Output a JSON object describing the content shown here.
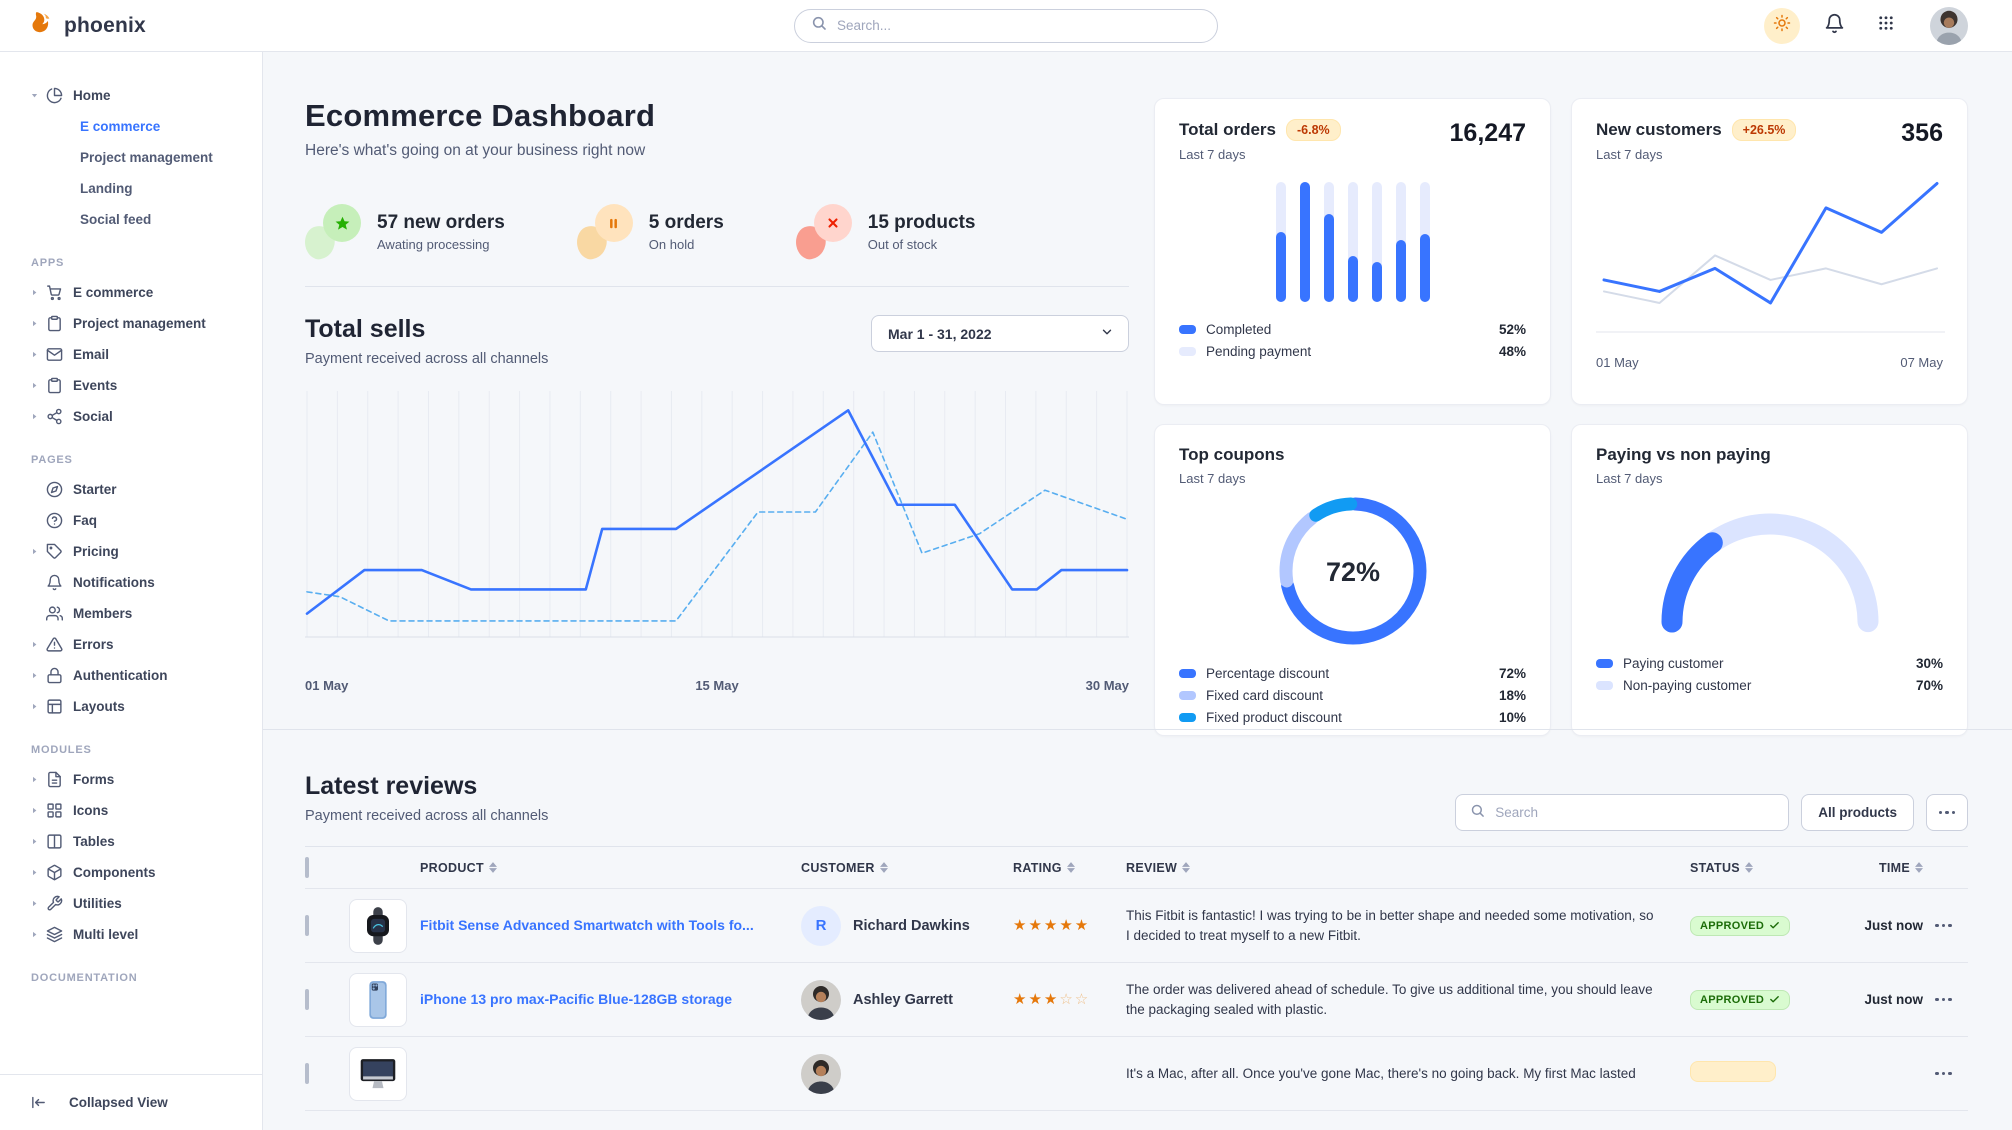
{
  "header": {
    "brand": "phoenix",
    "search_placeholder": "Search..."
  },
  "sidebar": {
    "home": {
      "label": "Home",
      "icon": "pie",
      "children": [
        {
          "label": "E commerce",
          "active": true
        },
        {
          "label": "Project management",
          "active": false
        },
        {
          "label": "Landing",
          "active": false
        },
        {
          "label": "Social feed",
          "active": false
        }
      ]
    },
    "sections": [
      {
        "label": "APPS",
        "items": [
          {
            "label": "E commerce",
            "icon": "cart",
            "caret": true
          },
          {
            "label": "Project management",
            "icon": "clipboard",
            "caret": true
          },
          {
            "label": "Email",
            "icon": "mail",
            "caret": true
          },
          {
            "label": "Events",
            "icon": "clipboard",
            "caret": true
          },
          {
            "label": "Social",
            "icon": "share",
            "caret": true
          }
        ]
      },
      {
        "label": "PAGES",
        "items": [
          {
            "label": "Starter",
            "icon": "compass",
            "caret": false
          },
          {
            "label": "Faq",
            "icon": "help",
            "caret": false
          },
          {
            "label": "Pricing",
            "icon": "tag",
            "caret": true
          },
          {
            "label": "Notifications",
            "icon": "bell",
            "caret": false
          },
          {
            "label": "Members",
            "icon": "users",
            "caret": false
          },
          {
            "label": "Errors",
            "icon": "alert",
            "caret": true
          },
          {
            "label": "Authentication",
            "icon": "lock",
            "caret": true
          },
          {
            "label": "Layouts",
            "icon": "layout",
            "caret": true
          }
        ]
      },
      {
        "label": "MODULES",
        "items": [
          {
            "label": "Forms",
            "icon": "file",
            "caret": true
          },
          {
            "label": "Icons",
            "icon": "grid",
            "caret": true
          },
          {
            "label": "Tables",
            "icon": "columns",
            "caret": true
          },
          {
            "label": "Components",
            "icon": "package",
            "caret": true
          },
          {
            "label": "Utilities",
            "icon": "tool",
            "caret": true
          },
          {
            "label": "Multi level",
            "icon": "layers",
            "caret": true
          }
        ]
      },
      {
        "label": "DOCUMENTATION",
        "items": []
      }
    ],
    "collapse_label": "Collapsed View"
  },
  "page": {
    "title": "Ecommerce Dashboard",
    "subtitle": "Here's what's going on at your business right now"
  },
  "stats": [
    {
      "value": "57 new orders",
      "label": "Awating processing",
      "icon": "star",
      "circle": "#c6efba",
      "glyph": "#25b003",
      "blob": "#d7f2cf"
    },
    {
      "value": "5 orders",
      "label": "On hold",
      "icon": "pause",
      "circle": "#ffe3bd",
      "glyph": "#e5780b",
      "blob": "#f9d8a3"
    },
    {
      "value": "15 products",
      "label": "Out of stock",
      "icon": "x",
      "circle": "#ffd5cd",
      "glyph": "#ed2000",
      "blob": "#f99e90"
    }
  ],
  "total_sells": {
    "title": "Total sells",
    "subtitle": "Payment received across all channels",
    "date_range": "Mar 1 - 31, 2022"
  },
  "cards": {
    "total_orders": {
      "title": "Total orders",
      "badge": "-6.8%",
      "value": "16,247",
      "period": "Last 7 days",
      "legend": [
        {
          "label": "Completed",
          "value": "52%",
          "color": "#3874ff"
        },
        {
          "label": "Pending payment",
          "value": "48%",
          "color": "#e6ebfd"
        }
      ]
    },
    "new_customers": {
      "title": "New customers",
      "badge": "+26.5%",
      "value": "356",
      "period": "Last 7 days"
    },
    "top_coupons": {
      "title": "Top coupons",
      "period": "Last 7 days",
      "legend": [
        {
          "label": "Percentage discount",
          "value": "72%",
          "color": "#3874ff"
        },
        {
          "label": "Fixed card discount",
          "value": "18%",
          "color": "#b2c7ff"
        },
        {
          "label": "Fixed product discount",
          "value": "10%",
          "color": "#119bf3"
        }
      ]
    },
    "paying": {
      "title": "Paying vs non paying",
      "period": "Last 7 days",
      "legend": [
        {
          "label": "Paying customer",
          "value": "30%",
          "color": "#3874ff"
        },
        {
          "label": "Non-paying customer",
          "value": "70%",
          "color": "#dbe4ff"
        }
      ]
    }
  },
  "chart_data": [
    {
      "id": "total_sells",
      "type": "line",
      "title": "Total sells",
      "x_labels": [
        "01 May",
        "15 May",
        "30 May"
      ],
      "ylim": [
        0,
        100
      ],
      "grid": true,
      "gridlines": 28,
      "series": [
        {
          "name": "current",
          "style": "solid",
          "color": "#3874ff",
          "points": [
            [
              0,
              8
            ],
            [
              7,
              26
            ],
            [
              14,
              26
            ],
            [
              20,
              18
            ],
            [
              34,
              18
            ],
            [
              36,
              43
            ],
            [
              45,
              43
            ],
            [
              66,
              92
            ],
            [
              72,
              53
            ],
            [
              79,
              53
            ],
            [
              86,
              18
            ],
            [
              89,
              18
            ],
            [
              92,
              26
            ],
            [
              100,
              26
            ]
          ]
        },
        {
          "name": "previous",
          "style": "dashed",
          "color": "#58aef0",
          "points": [
            [
              0,
              17
            ],
            [
              4,
              15
            ],
            [
              10,
              5
            ],
            [
              45,
              5
            ],
            [
              55,
              50
            ],
            [
              62,
              50
            ],
            [
              69,
              83
            ],
            [
              75,
              33
            ],
            [
              82,
              41
            ],
            [
              90,
              59
            ],
            [
              100,
              47
            ]
          ]
        }
      ]
    },
    {
      "id": "total_orders_bars",
      "type": "bar",
      "values": [
        58,
        100,
        73,
        38,
        33,
        52,
        57
      ],
      "ylim": [
        0,
        100
      ],
      "fill": "#3874ff",
      "track": "#e6ebfd"
    },
    {
      "id": "new_customers",
      "type": "line",
      "x_labels": [
        "01 May",
        "07 May"
      ],
      "ylim": [
        0,
        100
      ],
      "series": [
        {
          "name": "current",
          "color": "#3874ff",
          "width": 3,
          "values": [
            32,
            24,
            40,
            16,
            82,
            65,
            99
          ]
        },
        {
          "name": "previous",
          "color": "#d4dbe8",
          "width": 2,
          "values": [
            24,
            16,
            49,
            32,
            40,
            29,
            40
          ]
        }
      ]
    },
    {
      "id": "top_coupons_donut",
      "type": "pie",
      "center_label": "72%",
      "segments": [
        {
          "label": "Percentage discount",
          "value": 72,
          "color": "#3874ff"
        },
        {
          "label": "Fixed card discount",
          "value": 18,
          "color": "#b2c7ff"
        },
        {
          "label": "Fixed product discount",
          "value": 10,
          "color": "#119bf3"
        }
      ]
    },
    {
      "id": "paying_gauge",
      "type": "gauge",
      "segments": [
        {
          "label": "Paying customer",
          "value": 30,
          "color": "#3874ff"
        },
        {
          "label": "Non-paying customer",
          "value": 70,
          "color": "#dbe4ff"
        }
      ]
    }
  ],
  "reviews": {
    "title": "Latest reviews",
    "subtitle": "Payment received across all channels",
    "search_placeholder": "Search",
    "filter_label": "All products",
    "columns": [
      "PRODUCT",
      "CUSTOMER",
      "RATING",
      "REVIEW",
      "STATUS",
      "TIME"
    ],
    "rows": [
      {
        "product": "Fitbit Sense Advanced Smartwatch with Tools fo...",
        "product_image": "watch",
        "customer": "Richard Dawkins",
        "avatar_type": "initial",
        "avatar_initial": "R",
        "rating": 5,
        "review": "This Fitbit is fantastic! I was trying to be in better shape and needed some motivation, so I decided to treat myself to a new Fitbit.",
        "status": "APPROVED",
        "status_type": "approved",
        "time": "Just now"
      },
      {
        "product": "iPhone 13 pro max-Pacific Blue-128GB storage",
        "product_image": "phone",
        "customer": "Ashley Garrett",
        "avatar_type": "photo",
        "rating": 3,
        "review": "The order was delivered ahead of schedule. To give us additional time, you should leave the packaging sealed with plastic.",
        "status": "APPROVED",
        "status_type": "approved",
        "time": "Just now"
      },
      {
        "product": "",
        "product_image": "imac",
        "customer": "",
        "avatar_type": "photo",
        "rating": 0,
        "review": "It's a Mac, after all. Once you've gone Mac, there's no going back. My first Mac lasted",
        "status": "",
        "status_type": "pending",
        "time": ""
      }
    ]
  }
}
